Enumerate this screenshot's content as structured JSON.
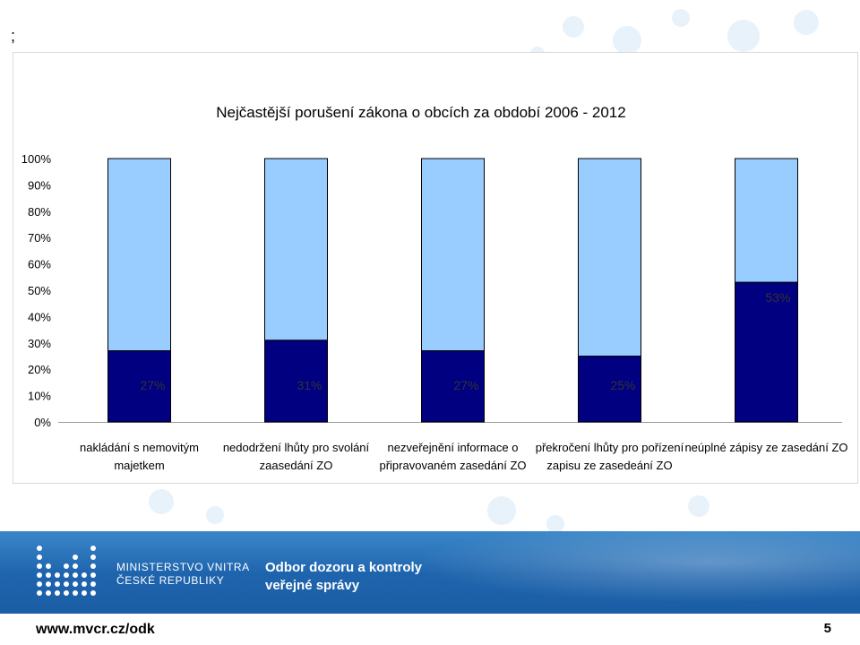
{
  "slide": {
    "mark": ";",
    "ministry_lines": [
      "MINISTERSTVO VNITRA",
      "ČESKÉ REPUBLIKY"
    ],
    "department_lines": [
      "Odbor dozoru a kontroly",
      "veřejné správy"
    ],
    "website": "www.mvcr.cz/odk",
    "page_number": "5"
  },
  "colors": {
    "bar_value": "#000080",
    "bar_rest": "#99ccff",
    "bar_outline": "#000000",
    "footer_blue": "#1e64ad"
  },
  "chart_data": {
    "type": "bar",
    "stacked": true,
    "percent_scale": true,
    "title": "Nejčastější porušení zákona o obcích  za období  2006 - 2012",
    "y_ticks": [
      "0%",
      "10%",
      "20%",
      "30%",
      "40%",
      "50%",
      "60%",
      "70%",
      "80%",
      "90%",
      "100%"
    ],
    "ylim": [
      0,
      100
    ],
    "grid": false,
    "legend": "none",
    "categories": [
      [
        "nakládání s nemovitým",
        "majetkem"
      ],
      [
        "nedodržení lhůty pro svolání",
        "zaasedání ZO"
      ],
      [
        "nezveřejnění informace o",
        "připravovaném zasedání ZO"
      ],
      [
        "překročení lhůty pro pořízení",
        "zapisu ze zasedeání ZO"
      ],
      [
        "neúplné zápisy ze zasedání ZO"
      ]
    ],
    "values": [
      27,
      31,
      27,
      25,
      53
    ],
    "value_labels": [
      "27%",
      "31%",
      "27%",
      "25%",
      "53%"
    ]
  }
}
